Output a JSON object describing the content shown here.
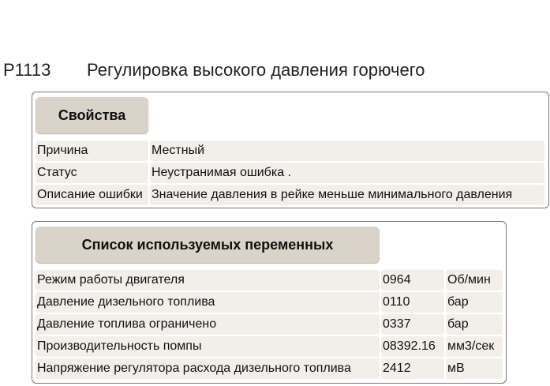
{
  "header": {
    "code": "P1113",
    "title": "Регулировка высокого давления горючего"
  },
  "properties": {
    "title": "Свойства",
    "rows": [
      [
        "Причина",
        "Местный"
      ],
      [
        "Статус",
        "Неустранимая ошибка ."
      ],
      [
        "Описание ошибки",
        "Значение давления в рейке меньше минимального давления"
      ]
    ]
  },
  "variables": {
    "title": "Список используемых переменных",
    "rows": [
      [
        "Режим работы двигателя",
        "0964",
        "Об/мин"
      ],
      [
        "Давление дизельного топлива",
        "0110",
        "бар"
      ],
      [
        "Давление топлива ограничено",
        "0337",
        "бар"
      ],
      [
        "Производительность помпы",
        "08392.16",
        "мм3/сек"
      ],
      [
        "Напряжение регулятора расхода дизельного топлива",
        "2412",
        "мВ"
      ]
    ]
  }
}
